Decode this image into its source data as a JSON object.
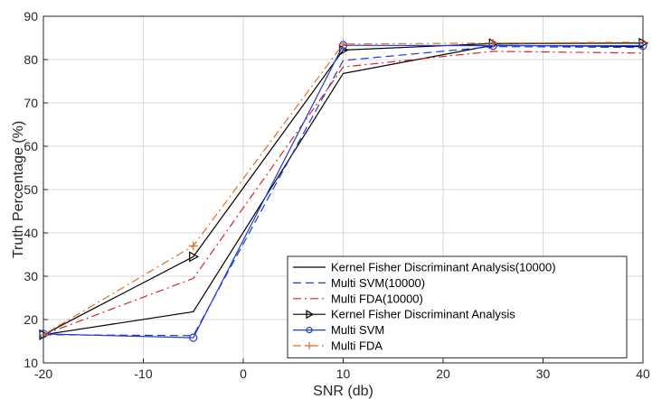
{
  "chart_data": {
    "type": "line",
    "title": "",
    "xlabel": "SNR (db)",
    "ylabel": "Truth Percentage (%)",
    "xlim": [
      -20,
      40
    ],
    "ylim": [
      10,
      90
    ],
    "xticks": [
      -20,
      -10,
      0,
      10,
      20,
      30,
      40
    ],
    "yticks": [
      10,
      20,
      30,
      40,
      50,
      60,
      70,
      80,
      90
    ],
    "xtick_labels": [
      "-20",
      "-10",
      "0",
      "10",
      "20",
      "30",
      "40"
    ],
    "ytick_labels": [
      "10",
      "20",
      "30",
      "40",
      "50",
      "60",
      "70",
      "80",
      "90"
    ],
    "grid": true,
    "legend_position": "bottom-right",
    "x": [
      -20,
      -5,
      10,
      25,
      40
    ],
    "series": [
      {
        "name": "Kernel Fisher Discriminant Analysis(10000)",
        "values": [
          16.5,
          21.8,
          76.8,
          83.3,
          83.0
        ],
        "color": "#000000",
        "dash": "solid",
        "marker": "none"
      },
      {
        "name": "Multi SVM(10000)",
        "values": [
          16.5,
          16.3,
          79.8,
          83.0,
          82.8
        ],
        "color": "#1f3bd6",
        "dash": "dashed",
        "marker": "none"
      },
      {
        "name": "Multi FDA(10000)",
        "values": [
          16.5,
          29.5,
          78.3,
          81.9,
          81.5
        ],
        "color": "#d62728",
        "dash": "dashdot",
        "marker": "none"
      },
      {
        "name": "Kernel Fisher Discriminant Analysis",
        "values": [
          16.5,
          34.5,
          82.2,
          83.7,
          83.8
        ],
        "color": "#000000",
        "dash": "solid",
        "marker": "triangle-right"
      },
      {
        "name": "Multi SVM",
        "values": [
          16.7,
          15.8,
          83.3,
          83.2,
          83.2
        ],
        "color": "#1f3bd6",
        "dash": "solid",
        "marker": "circle"
      },
      {
        "name": "Multi FDA",
        "values": [
          16.5,
          37.0,
          83.6,
          83.8,
          84.0
        ],
        "color": "#e07020",
        "dash": "dashdot",
        "marker": "plus"
      }
    ]
  }
}
